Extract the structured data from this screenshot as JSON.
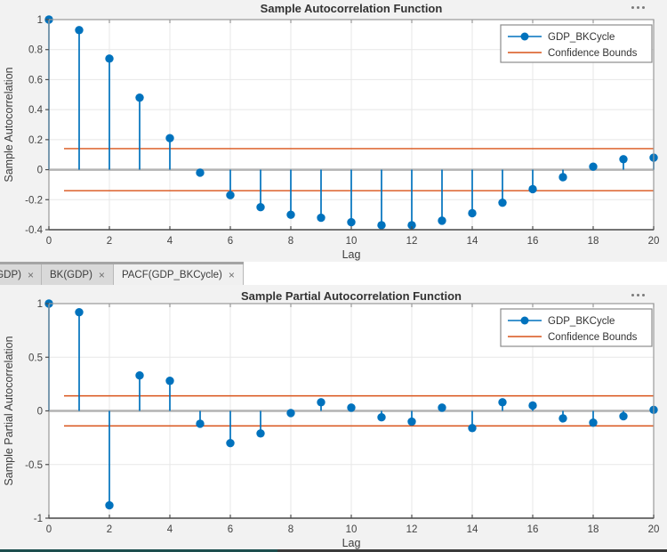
{
  "colors": {
    "series_blue": "#0072BD",
    "confidence_orange": "#D95319",
    "figure_bg": "#f2f2f2",
    "plot_bg": "#ffffff",
    "grid": "#e7e7e7",
    "zero_line": "#b3b3b3",
    "box_border": "#9a9a9a",
    "axis_dark": "#4d4d4d",
    "tick_text": "#424242",
    "label_text": "#3d3d3d",
    "legend_border": "#8c8c8c"
  },
  "tab_bar": {
    "items": [
      {
        "label": "GDP)",
        "close": "×",
        "active": false,
        "truncated": true
      },
      {
        "label": "BK(GDP)",
        "close": "×",
        "active": false,
        "truncated": false
      },
      {
        "label": "PACF(GDP_BKCycle)",
        "close": "×",
        "active": true,
        "truncated": false
      }
    ]
  },
  "chart_data": [
    {
      "type": "stem",
      "title": "Sample Autocorrelation Function",
      "xlabel": "Lag",
      "ylabel": "Sample Autocorrelation",
      "x": [
        0,
        1,
        2,
        3,
        4,
        5,
        6,
        7,
        8,
        9,
        10,
        11,
        12,
        13,
        14,
        15,
        16,
        17,
        18,
        19,
        20
      ],
      "values": [
        1.0,
        0.93,
        0.74,
        0.48,
        0.21,
        -0.02,
        -0.17,
        -0.25,
        -0.3,
        -0.32,
        -0.35,
        -0.37,
        -0.37,
        -0.34,
        -0.29,
        -0.22,
        -0.13,
        -0.05,
        0.02,
        0.07,
        0.08
      ],
      "confidence_bounds": {
        "upper": 0.14,
        "lower": -0.14,
        "x_start": 0.5
      },
      "xlim": [
        0,
        20
      ],
      "ylim": [
        -0.4,
        1
      ],
      "yticks": [
        1,
        0.8,
        0.6,
        0.4,
        0.2,
        0,
        -0.2,
        -0.4
      ],
      "xticks": [
        0,
        2,
        4,
        6,
        8,
        10,
        12,
        14,
        16,
        18,
        20
      ],
      "grid": true,
      "legend": [
        {
          "label": "GDP_BKCycle",
          "style": "line-marker",
          "color": "#0072BD"
        },
        {
          "label": "Confidence Bounds",
          "style": "line",
          "color": "#D95319"
        }
      ],
      "legend_position": "northeast"
    },
    {
      "type": "stem",
      "title": "Sample Partial Autocorrelation Function",
      "xlabel": "Lag",
      "ylabel": "Sample Partial Autocorrelation",
      "x": [
        0,
        1,
        2,
        3,
        4,
        5,
        6,
        7,
        8,
        9,
        10,
        11,
        12,
        13,
        14,
        15,
        16,
        17,
        18,
        19,
        20
      ],
      "values": [
        1.0,
        0.92,
        -0.88,
        0.33,
        0.28,
        -0.12,
        -0.3,
        -0.21,
        -0.02,
        0.08,
        0.03,
        -0.06,
        -0.1,
        0.03,
        -0.16,
        0.08,
        0.05,
        -0.07,
        -0.11,
        -0.05,
        0.01
      ],
      "confidence_bounds": {
        "upper": 0.14,
        "lower": -0.14,
        "x_start": 0.5
      },
      "xlim": [
        0,
        20
      ],
      "ylim": [
        -1,
        1
      ],
      "yticks": [
        1,
        0.5,
        0,
        -0.5,
        -1
      ],
      "xticks": [
        0,
        2,
        4,
        6,
        8,
        10,
        12,
        14,
        16,
        18,
        20
      ],
      "grid": true,
      "legend": [
        {
          "label": "GDP_BKCycle",
          "style": "line-marker",
          "color": "#0072BD"
        },
        {
          "label": "Confidence Bounds",
          "style": "line",
          "color": "#D95319"
        }
      ],
      "legend_position": "northeast"
    }
  ]
}
